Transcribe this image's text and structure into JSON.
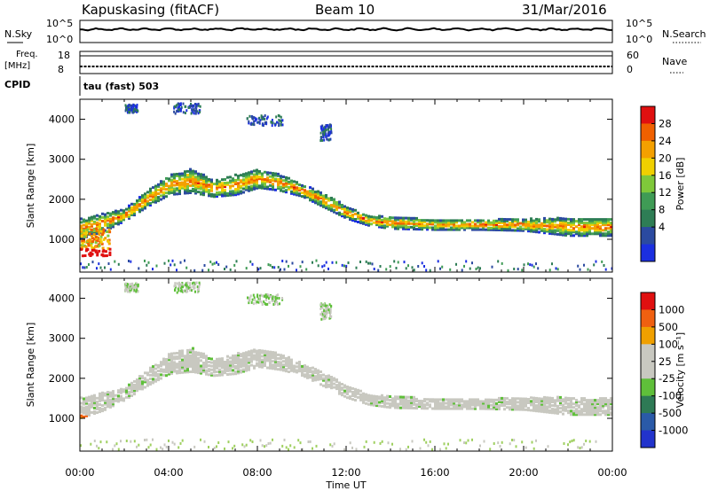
{
  "header": {
    "station": "Kapuskasing (fitACF)",
    "beam": "Beam 10",
    "date": "31/Mar/2016"
  },
  "noise_panel": {
    "left_label": "N.Sky",
    "right_label": "N.Search",
    "left_ticks": [
      "10^5",
      "10^0"
    ],
    "right_ticks": [
      "10^5",
      "10^0"
    ]
  },
  "freq_panel": {
    "left_label_1": "Freq.",
    "left_label_2": "[MHz]",
    "right_label": "Nave",
    "left_ticks": [
      "18",
      "8"
    ],
    "right_ticks": [
      "60",
      "0"
    ]
  },
  "cpid": {
    "label": "CPID",
    "value": "tau (fast) 503"
  },
  "x_axis": {
    "title": "Time UT",
    "ticks": [
      "00:00",
      "04:00",
      "08:00",
      "12:00",
      "16:00",
      "20:00",
      "00:00"
    ]
  },
  "power_panel": {
    "ylabel": "Slant Range [km]",
    "yticks": [
      "4000",
      "3000",
      "2000",
      "1000"
    ],
    "colorbar_label": "Power [dB]",
    "colorbar_ticks": [
      "28",
      "24",
      "20",
      "16",
      "12",
      "8",
      "4"
    ],
    "colors": [
      "#1b2fe0",
      "#2b4aa0",
      "#2e7d55",
      "#3f9b55",
      "#7fc83a",
      "#f0d000",
      "#f4a000",
      "#f06000",
      "#e01010"
    ]
  },
  "velocity_panel": {
    "ylabel": "Slant Range [km]",
    "yticks": [
      "4000",
      "3000",
      "2000",
      "1000"
    ],
    "colorbar_label": "Velocity [m s⁻¹]",
    "colorbar_ticks": [
      "1000",
      "500",
      "100",
      "25",
      "-25",
      "-100",
      "-500",
      "-1000"
    ],
    "colors": [
      "#2233cc",
      "#2a5aa8",
      "#2e7a55",
      "#5fbf3a",
      "#c8c8c0",
      "#c8c8c0",
      "#f0a000",
      "#f06010",
      "#e01010"
    ]
  },
  "chart_data": {
    "type": "heatmap",
    "title": "Kapuskasing (fitACF)  Beam 10  31/Mar/2016",
    "xlabel": "Time UT",
    "ylabel": "Slant Range [km]",
    "xlim_hours": [
      0,
      24
    ],
    "ylim_km": [
      180,
      4500
    ],
    "scatter_bands": [
      {
        "name": "main echo",
        "x_hours": [
          0,
          1,
          2,
          3,
          4,
          5,
          6,
          7,
          8,
          9,
          10,
          11,
          12,
          13,
          14,
          16,
          18,
          20,
          22,
          24
        ],
        "center_km": [
          1300,
          1450,
          1650,
          2050,
          2400,
          2500,
          2300,
          2400,
          2550,
          2450,
          2250,
          2000,
          1700,
          1500,
          1450,
          1400,
          1400,
          1400,
          1350,
          1350
        ],
        "width_km": [
          500,
          450,
          300,
          400,
          500,
          600,
          400,
          500,
          450,
          400,
          300,
          350,
          300,
          250,
          300,
          250,
          250,
          300,
          450,
          450
        ]
      }
    ],
    "power_colorbar_db": [
      4,
      8,
      12,
      16,
      20,
      24,
      28
    ],
    "velocity_colorbar_ms": [
      1000,
      500,
      100,
      25,
      -25,
      -100,
      -500,
      -1000
    ]
  }
}
